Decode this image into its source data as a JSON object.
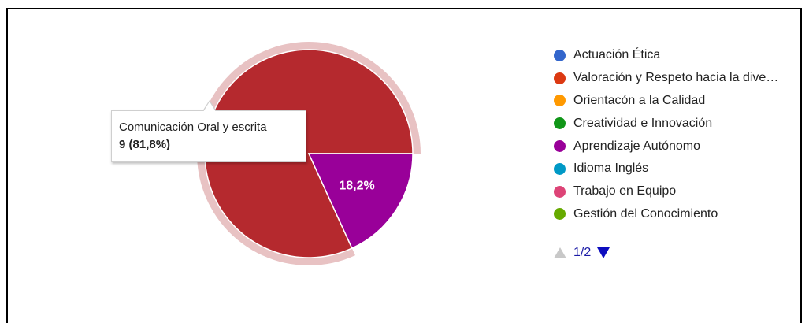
{
  "chart_data": {
    "type": "pie",
    "slices": [
      {
        "label": "Comunicación Oral y escrita",
        "value": 9,
        "percent_label": "81,8%",
        "color": "#b5292e"
      },
      {
        "label": "Aprendizaje Autónomo",
        "value": 2,
        "percent_label": "18,2%",
        "color": "#990099"
      }
    ],
    "highlighted_slice": "Comunicación Oral y escrita",
    "legend_position": "right"
  },
  "legend": {
    "items": [
      {
        "label": "Actuación Ética",
        "color": "#3366cc"
      },
      {
        "label": "Valoración y Respeto hacia la dive…",
        "color": "#dc3912"
      },
      {
        "label": "Orientacón a la Calidad",
        "color": "#ff9900"
      },
      {
        "label": "Creatividad e Innovación",
        "color": "#109618"
      },
      {
        "label": "Aprendizaje Autónomo",
        "color": "#990099"
      },
      {
        "label": "Idioma Inglés",
        "color": "#0099c6"
      },
      {
        "label": "Trabajo en Equipo",
        "color": "#dd4477"
      },
      {
        "label": "Gestión del Conocimiento",
        "color": "#66aa00"
      }
    ],
    "pager": {
      "text": "1/2"
    }
  },
  "tooltip": {
    "title": "Comunicación Oral y escrita",
    "value": "9 (81,8%)"
  }
}
